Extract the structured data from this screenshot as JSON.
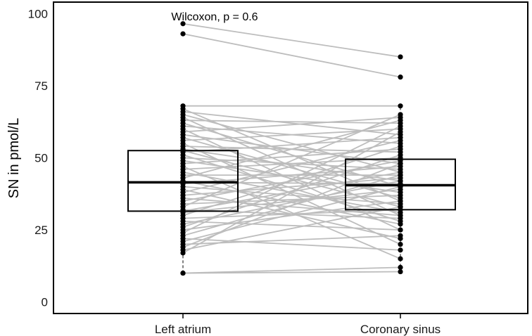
{
  "chart_data": {
    "type": "box",
    "ylabel": "SN in pmol/L",
    "categories": [
      "Left atrium",
      "Coronary sinus"
    ],
    "yticks": [
      0,
      25,
      50,
      75,
      100
    ],
    "ylim": [
      -4,
      104
    ],
    "annotation": "Wilcoxon, p = 0.6",
    "grid": false,
    "boxes": [
      {
        "category": "Left atrium",
        "q1": 31.5,
        "median": 41.5,
        "q3": 52.5,
        "whisker_low": 10,
        "whisker_high": 68
      },
      {
        "category": "Coronary sinus",
        "q1": 32,
        "median": 40.5,
        "q3": 49.5,
        "whisker_low": 10.5,
        "whisker_high": 68
      }
    ],
    "pairs": [
      [
        96.5,
        85
      ],
      [
        93,
        78
      ],
      [
        68,
        68
      ],
      [
        67,
        35
      ],
      [
        66,
        58
      ],
      [
        65,
        45
      ],
      [
        64,
        30
      ],
      [
        63,
        62
      ],
      [
        62,
        40
      ],
      [
        61,
        55
      ],
      [
        60,
        25
      ],
      [
        59,
        64
      ],
      [
        58,
        48
      ],
      [
        57,
        36
      ],
      [
        56,
        60
      ],
      [
        55,
        20
      ],
      [
        54,
        52
      ],
      [
        53,
        42
      ],
      [
        52.5,
        33
      ],
      [
        52,
        57
      ],
      [
        51,
        28
      ],
      [
        50,
        46
      ],
      [
        49,
        38
      ],
      [
        48,
        53
      ],
      [
        47,
        15
      ],
      [
        46,
        50
      ],
      [
        45,
        31
      ],
      [
        44,
        44
      ],
      [
        43,
        63
      ],
      [
        42,
        27
      ],
      [
        41.5,
        41
      ],
      [
        41,
        47
      ],
      [
        40,
        34
      ],
      [
        39,
        22
      ],
      [
        38,
        56
      ],
      [
        37,
        43
      ],
      [
        36,
        30
      ],
      [
        35,
        49
      ],
      [
        34,
        37
      ],
      [
        33,
        65
      ],
      [
        32,
        29
      ],
      [
        31.5,
        45
      ],
      [
        31,
        39
      ],
      [
        30,
        54
      ],
      [
        29,
        32
      ],
      [
        28,
        25
      ],
      [
        27,
        42
      ],
      [
        26,
        51
      ],
      [
        25,
        35
      ],
      [
        24,
        61
      ],
      [
        23,
        44
      ],
      [
        22,
        18
      ],
      [
        21,
        40
      ],
      [
        20,
        23
      ],
      [
        19,
        48
      ],
      [
        18,
        33
      ],
      [
        17,
        59
      ],
      [
        10,
        12
      ],
      [
        10,
        10.5
      ]
    ]
  }
}
